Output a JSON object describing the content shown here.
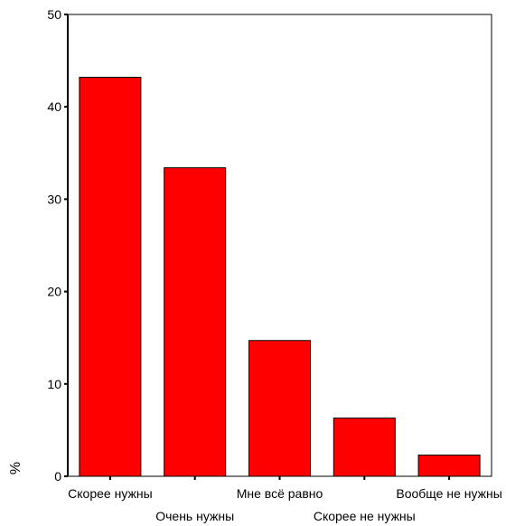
{
  "chart_data": {
    "type": "bar",
    "categories": [
      "Скорее нужны",
      "Очень нужны",
      "Мне всё равно",
      "Скорее не нужны",
      "Вообще не нужны"
    ],
    "values": [
      43.2,
      33.4,
      14.7,
      6.3,
      2.3
    ],
    "title": "",
    "xlabel": "",
    "ylabel": "%",
    "ylim": [
      0,
      50
    ],
    "yticks": [
      0,
      10,
      20,
      30,
      40,
      50
    ],
    "grid": false,
    "legend": "none",
    "colors": {
      "bar": "#ff0000",
      "bar_stroke": "#000000",
      "axis": "#000000"
    }
  }
}
